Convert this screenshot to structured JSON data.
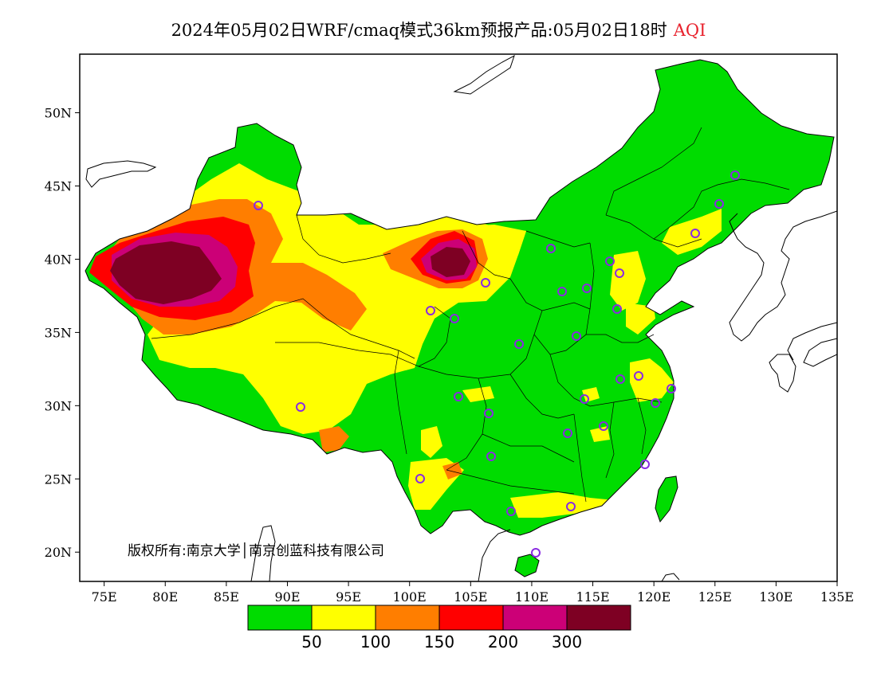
{
  "title": {
    "main": "2024年05月02日WRF/cmaq模式36km预报产品:05月02日18时",
    "variable": "AQI",
    "variable_color": "#e8222d"
  },
  "axes": {
    "lon_labels": [
      "75E",
      "80E",
      "85E",
      "90E",
      "95E",
      "100E",
      "105E",
      "110E",
      "115E",
      "120E",
      "125E",
      "130E",
      "135E"
    ],
    "lat_labels": [
      "20N",
      "25N",
      "30N",
      "35N",
      "40N",
      "45N",
      "50N"
    ],
    "lon_range": [
      73,
      135
    ],
    "lat_range": [
      18,
      54
    ]
  },
  "copyright": "版权所有:南京大学│南京创蓝科技有限公司",
  "legend": {
    "colors": [
      "#00dc00",
      "#ffff00",
      "#ff7e00",
      "#ff0000",
      "#cc0077",
      "#7e0023"
    ],
    "labels": [
      "50",
      "100",
      "150",
      "200",
      "300"
    ]
  }
}
